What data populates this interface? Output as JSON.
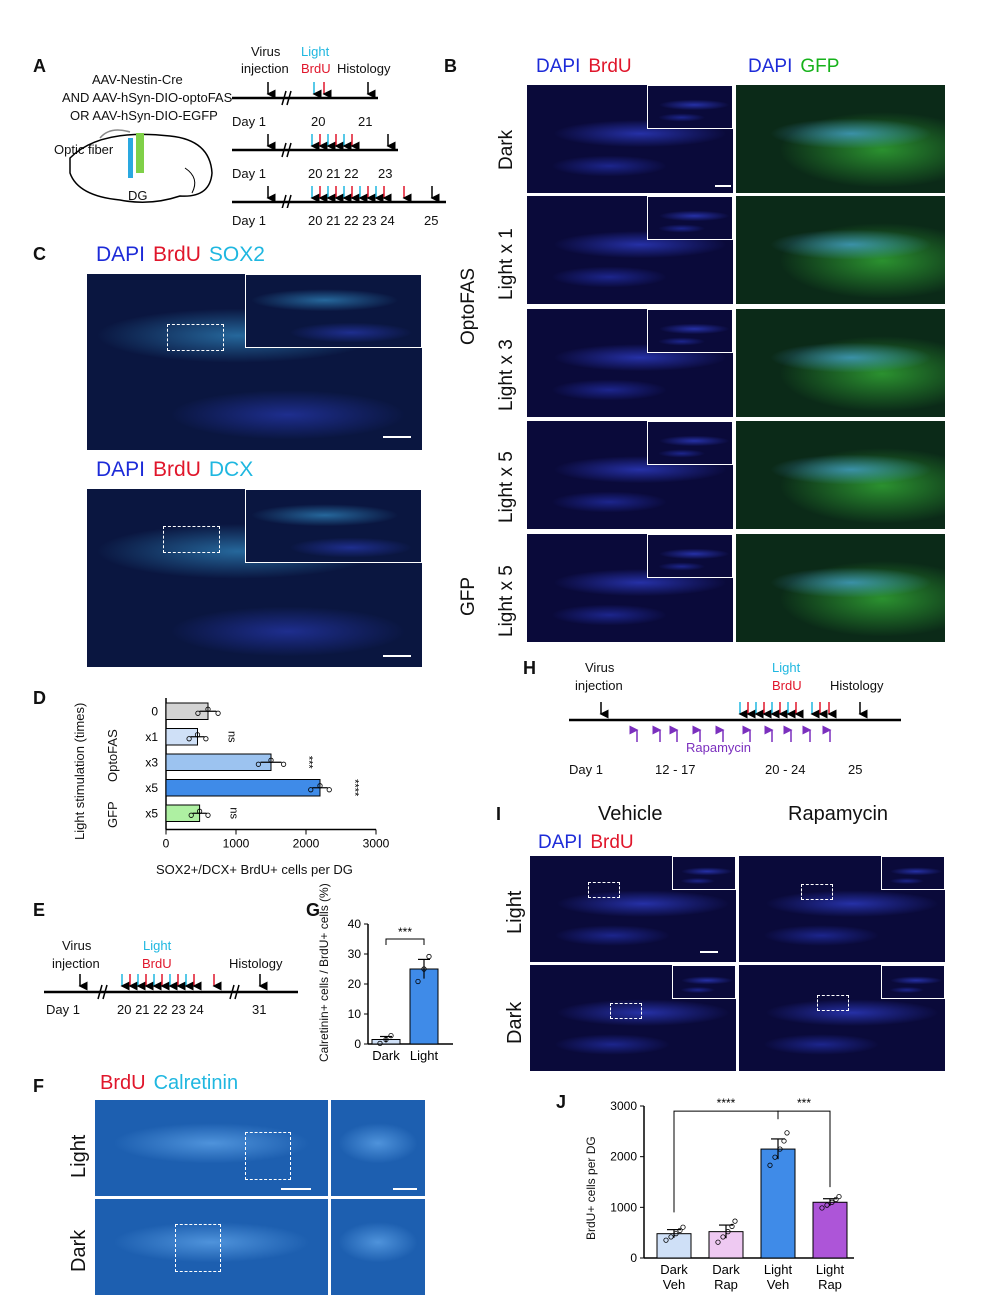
{
  "panels": {
    "A": "A",
    "B": "B",
    "C": "C",
    "D": "D",
    "E": "E",
    "F": "F",
    "G": "G",
    "H": "H",
    "I": "I",
    "J": "J"
  },
  "panelA": {
    "virus_lines": [
      "AAV-Nestin-Cre",
      "AND AAV-hSyn-DIO-optoFAS",
      "OR AAV-hSyn-DIO-EGFP"
    ],
    "optic_fiber": "Optic fiber",
    "dg": "DG",
    "virus_injection": [
      "Virus",
      "injection"
    ],
    "light": "Light",
    "brdu": "BrdU",
    "histology": "Histology",
    "timeline1": {
      "day1": "Day 1",
      "days": "20",
      "end": "21"
    },
    "timeline2": {
      "day1": "Day 1",
      "days": "20 21 22",
      "end": "23"
    },
    "timeline3": {
      "day1": "Day 1",
      "days": "20 21 22 23 24",
      "end": "25"
    }
  },
  "panelB": {
    "header_left": [
      "DAPI",
      "BrdU"
    ],
    "header_right": [
      "DAPI",
      "GFP"
    ],
    "rows": [
      "Dark",
      "Light x 1",
      "Light x 3",
      "Light x 5",
      "Light x 5"
    ],
    "groups": [
      "OptoFAS",
      "GFP"
    ]
  },
  "panelC": {
    "header1": [
      "DAPI",
      "BrdU",
      "SOX2"
    ],
    "header2": [
      "DAPI",
      "BrdU",
      "DCX"
    ]
  },
  "panelD": {
    "chart_data": {
      "type": "bar",
      "orientation": "horizontal",
      "categories": [
        "0",
        "x1",
        "x3",
        "x5",
        "x5"
      ],
      "groups": [
        "OptoFAS",
        "GFP"
      ],
      "values": [
        600,
        450,
        1500,
        2200,
        480
      ],
      "errors": [
        120,
        100,
        150,
        110,
        100
      ],
      "significance": [
        "",
        "ns",
        "***",
        "****",
        "ns"
      ],
      "colors": [
        "#d3d3d3",
        "#cfe0f7",
        "#9cc3f0",
        "#3f8be8",
        "#aef0a2"
      ],
      "xlabel": "SOX2+/DCX+ BrdU+ cells per DG",
      "ylabel": "Light stimulation (times)",
      "xticks": [
        "0",
        "1000",
        "2000",
        "3000"
      ],
      "xlim": [
        0,
        3000
      ]
    }
  },
  "panelE": {
    "virus_injection": [
      "Virus",
      "injection"
    ],
    "light": "Light",
    "brdu": "BrdU",
    "histology": "Histology",
    "day1": "Day 1",
    "days": "20 21 22 23 24",
    "end": "31"
  },
  "panelF": {
    "header": [
      "BrdU",
      "Calretinin"
    ],
    "rows": [
      "Light",
      "Dark"
    ]
  },
  "panelG": {
    "chart_data": {
      "type": "bar",
      "categories": [
        "Dark",
        "Light"
      ],
      "values": [
        1.5,
        25
      ],
      "errors": [
        1,
        3.2
      ],
      "significance": "***",
      "colors": [
        "#cfe0f7",
        "#3f8be8"
      ],
      "ylabel": "Calretinin+ cells / BrdU+ cells (%)",
      "yticks": [
        "0",
        "10",
        "20",
        "30",
        "40"
      ],
      "ylim": [
        0,
        40
      ]
    }
  },
  "panelH": {
    "virus_injection": [
      "Virus",
      "injection"
    ],
    "light": "Light",
    "brdu": "BrdU",
    "histology": "Histology",
    "rapamycin": "Rapamycin",
    "day1": "Day 1",
    "d12": "12 - 17",
    "d20": "20 - 24",
    "d25": "25"
  },
  "panelI": {
    "col_headers": [
      "Vehicle",
      "Rapamycin"
    ],
    "stain": [
      "DAPI",
      "BrdU"
    ],
    "rows": [
      "Light",
      "Dark"
    ]
  },
  "panelJ": {
    "chart_data": {
      "type": "bar",
      "categories": [
        "Dark Veh",
        "Dark Rap",
        "Light Veh",
        "Light Rap"
      ],
      "cat_lines": [
        [
          "Dark",
          "Veh"
        ],
        [
          "Dark",
          "Rap"
        ],
        [
          "Light",
          "Veh"
        ],
        [
          "Light",
          "Rap"
        ]
      ],
      "values": [
        480,
        520,
        2150,
        1100
      ],
      "errors": [
        80,
        130,
        200,
        70
      ],
      "significance": [
        {
          "from": "Dark Veh",
          "to": "Light Veh",
          "label": "****"
        },
        {
          "from": "Light Veh",
          "to": "Light Rap",
          "label": "***"
        }
      ],
      "colors": [
        "#cfe0f7",
        "#eec9f2",
        "#3f8be8",
        "#ad55d8"
      ],
      "ylabel": "BrdU+ cells per DG",
      "yticks": [
        "0",
        "1000",
        "2000",
        "3000"
      ],
      "ylim": [
        0,
        3000
      ]
    }
  }
}
